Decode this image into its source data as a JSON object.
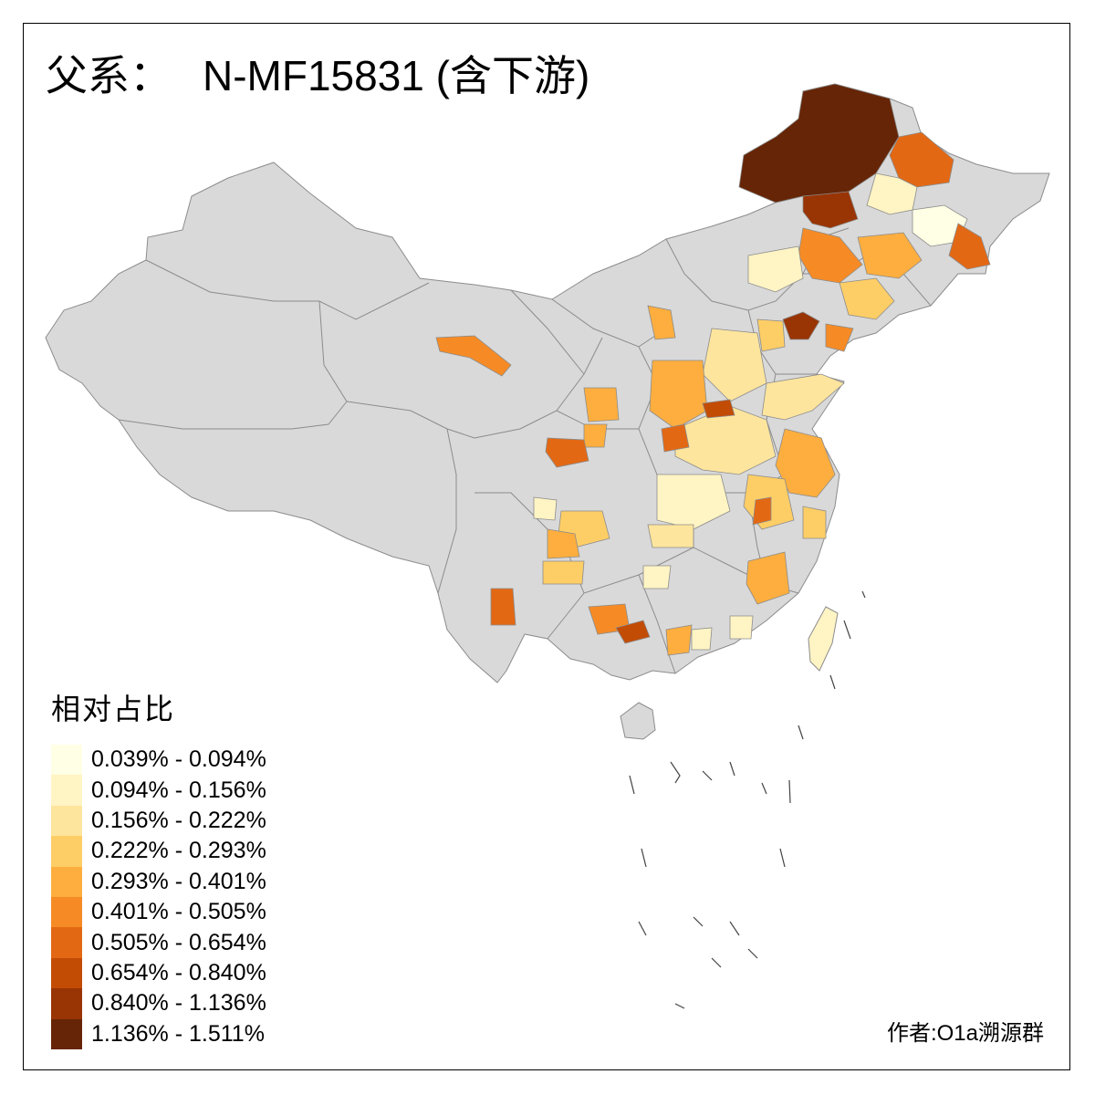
{
  "title": {
    "prefix": "父系：",
    "haplogroup": "N-MF15831 (含下游)"
  },
  "legend": {
    "title": "相对占比",
    "items": [
      {
        "label": "0.039% - 0.094%",
        "color": "#FFFFE5"
      },
      {
        "label": "0.094% - 0.156%",
        "color": "#FFF4C4"
      },
      {
        "label": "0.156% - 0.222%",
        "color": "#FEE59D"
      },
      {
        "label": "0.222% - 0.293%",
        "color": "#FECE66"
      },
      {
        "label": "0.293% - 0.401%",
        "color": "#FDAE3E"
      },
      {
        "label": "0.401% - 0.505%",
        "color": "#F68B25"
      },
      {
        "label": "0.505% - 0.654%",
        "color": "#E36814"
      },
      {
        "label": "0.654% - 0.840%",
        "color": "#C34C05"
      },
      {
        "label": "0.840% - 1.136%",
        "color": "#993404"
      },
      {
        "label": "1.136% - 1.511%",
        "color": "#662506"
      }
    ]
  },
  "credit": "作者:O1a溯源群",
  "map": {
    "no_data_color": "#D9D9D9",
    "border_color": "#8C8C8C"
  }
}
